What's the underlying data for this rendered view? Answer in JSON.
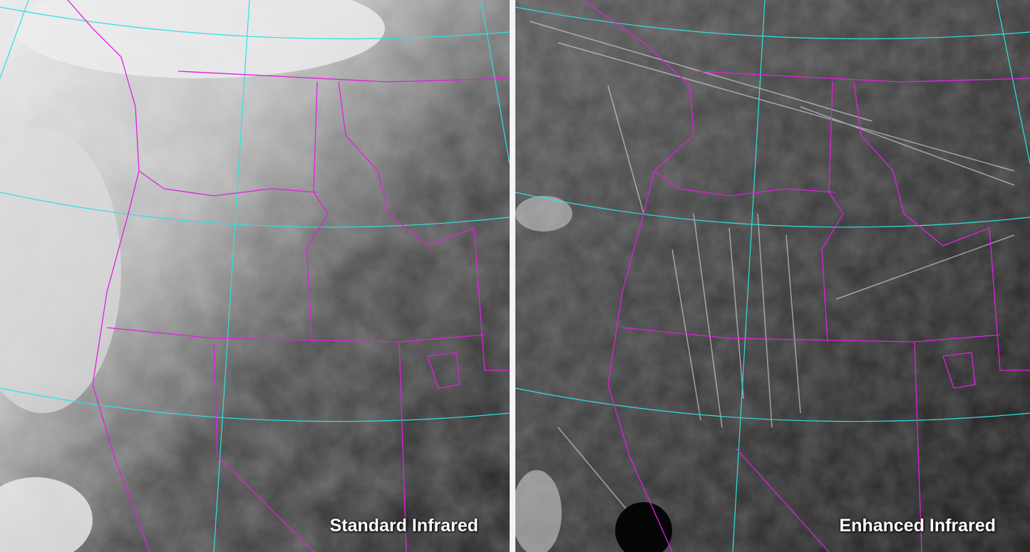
{
  "panels": [
    {
      "label": "Standard Infrared"
    },
    {
      "label": "Enhanced Infrared"
    }
  ],
  "colors": {
    "state_boundaries": "#e020e0",
    "lat_lon_grid": "#30e0e0",
    "divider": "#f4f4f4"
  }
}
